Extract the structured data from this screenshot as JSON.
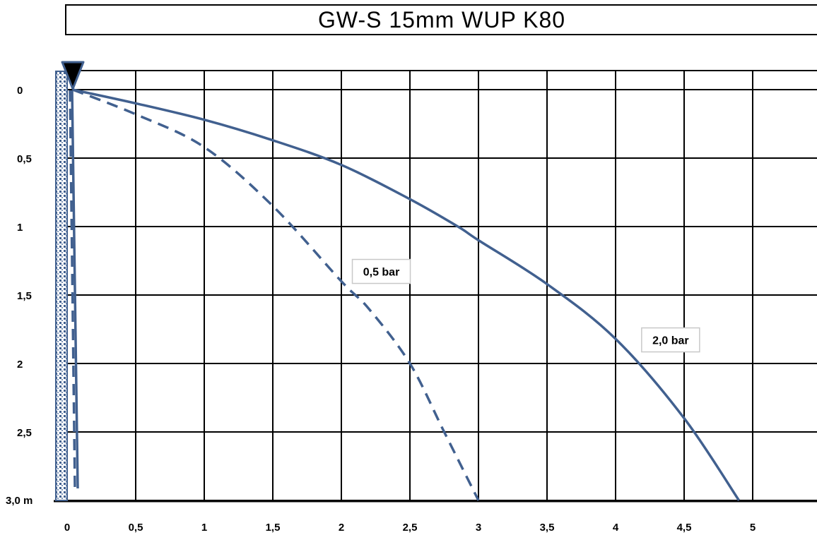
{
  "chart_data": {
    "type": "line",
    "title": "GW-S 15mm WUP K80",
    "xlabel": "",
    "ylabel": "",
    "xlim": [
      0,
      5.5
    ],
    "ylim": [
      0,
      3.0
    ],
    "y_inverted": true,
    "grid": true,
    "x_ticks": [
      "0",
      "0,5",
      "1",
      "1,5",
      "2",
      "2,5",
      "3",
      "3,5",
      "4",
      "4,5",
      "5"
    ],
    "y_ticks": [
      "0",
      "0,5",
      "1",
      "1,5",
      "2",
      "2,5",
      "3,0 m"
    ],
    "series": [
      {
        "name": "2,0 bar",
        "style": "solid",
        "color": "#41608f",
        "x": [
          0.04,
          0.5,
          1.0,
          1.5,
          2.0,
          2.5,
          2.85,
          3.0,
          3.5,
          4.0,
          4.5,
          4.9
        ],
        "y": [
          0.0,
          0.1,
          0.22,
          0.37,
          0.55,
          0.8,
          1.0,
          1.1,
          1.42,
          1.82,
          2.4,
          3.0
        ]
      },
      {
        "name": "0,5 bar",
        "style": "dashed",
        "color": "#41608f",
        "x": [
          0.04,
          0.5,
          1.0,
          1.5,
          2.0,
          2.2,
          2.5,
          2.75,
          3.0
        ],
        "y": [
          0.0,
          0.18,
          0.42,
          0.85,
          1.4,
          1.6,
          2.0,
          2.5,
          3.0
        ]
      }
    ],
    "annotations": [
      {
        "text": "0,5 bar",
        "x": 2.08,
        "y": 1.24
      },
      {
        "text": "2,0 bar",
        "x": 4.19,
        "y": 1.74
      }
    ]
  }
}
